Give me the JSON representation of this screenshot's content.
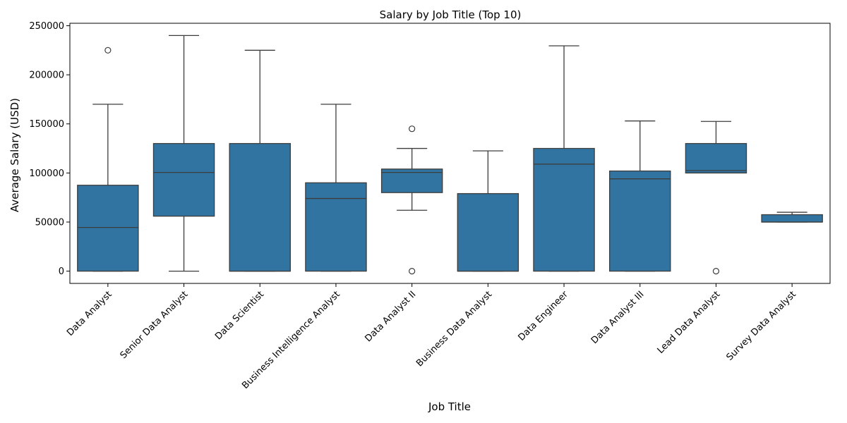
{
  "chart_data": {
    "type": "boxplot",
    "title": "Salary by Job Title (Top 10)",
    "xlabel": "Job Title",
    "ylabel": "Average Salary (USD)",
    "ylim": [
      -12500,
      252500
    ],
    "yticks": [
      0,
      50000,
      100000,
      150000,
      200000,
      250000
    ],
    "ytick_labels": [
      "0",
      "50000",
      "100000",
      "150000",
      "200000",
      "250000"
    ],
    "grid": false,
    "legend": "none",
    "colors": {
      "box_fill": "#3274a1",
      "line": "#3d3d3d",
      "outlier": "#3d3d3d"
    },
    "categories": [
      "Data Analyst",
      "Senior Data Analyst",
      "Data Scientist",
      "Business Intelligence Analyst",
      "Data Analyst II",
      "Business Data Analyst",
      "Data Engineer",
      "Data Analyst III",
      "Lead Data Analyst",
      "Survey Data Analyst"
    ],
    "boxes": [
      {
        "whisker_low": 0,
        "q1": 0,
        "median": 44500,
        "q3": 87500,
        "whisker_high": 170000,
        "outliers": [
          225000
        ]
      },
      {
        "whisker_low": 0,
        "q1": 56000,
        "median": 100500,
        "q3": 130000,
        "whisker_high": 240000,
        "outliers": []
      },
      {
        "whisker_low": 0,
        "q1": 0,
        "median": 0,
        "q3": 130000,
        "whisker_high": 225000,
        "outliers": []
      },
      {
        "whisker_low": 0,
        "q1": 0,
        "median": 74000,
        "q3": 90000,
        "whisker_high": 170000,
        "outliers": []
      },
      {
        "whisker_low": 62000,
        "q1": 80000,
        "median": 100500,
        "q3": 104000,
        "whisker_high": 125000,
        "outliers": [
          145000,
          0
        ]
      },
      {
        "whisker_low": 0,
        "q1": 0,
        "median": 0,
        "q3": 79000,
        "whisker_high": 122500,
        "outliers": []
      },
      {
        "whisker_low": 0,
        "q1": 0,
        "median": 109000,
        "q3": 125000,
        "whisker_high": 229500,
        "outliers": []
      },
      {
        "whisker_low": 0,
        "q1": 0,
        "median": 94000,
        "q3": 102000,
        "whisker_high": 153000,
        "outliers": []
      },
      {
        "whisker_low": 100000,
        "q1": 100000,
        "median": 102500,
        "q3": 130000,
        "whisker_high": 152500,
        "outliers": [
          0
        ]
      },
      {
        "whisker_low": 50000,
        "q1": 50000,
        "median": 50000,
        "q3": 57500,
        "whisker_high": 60000,
        "outliers": []
      }
    ]
  }
}
